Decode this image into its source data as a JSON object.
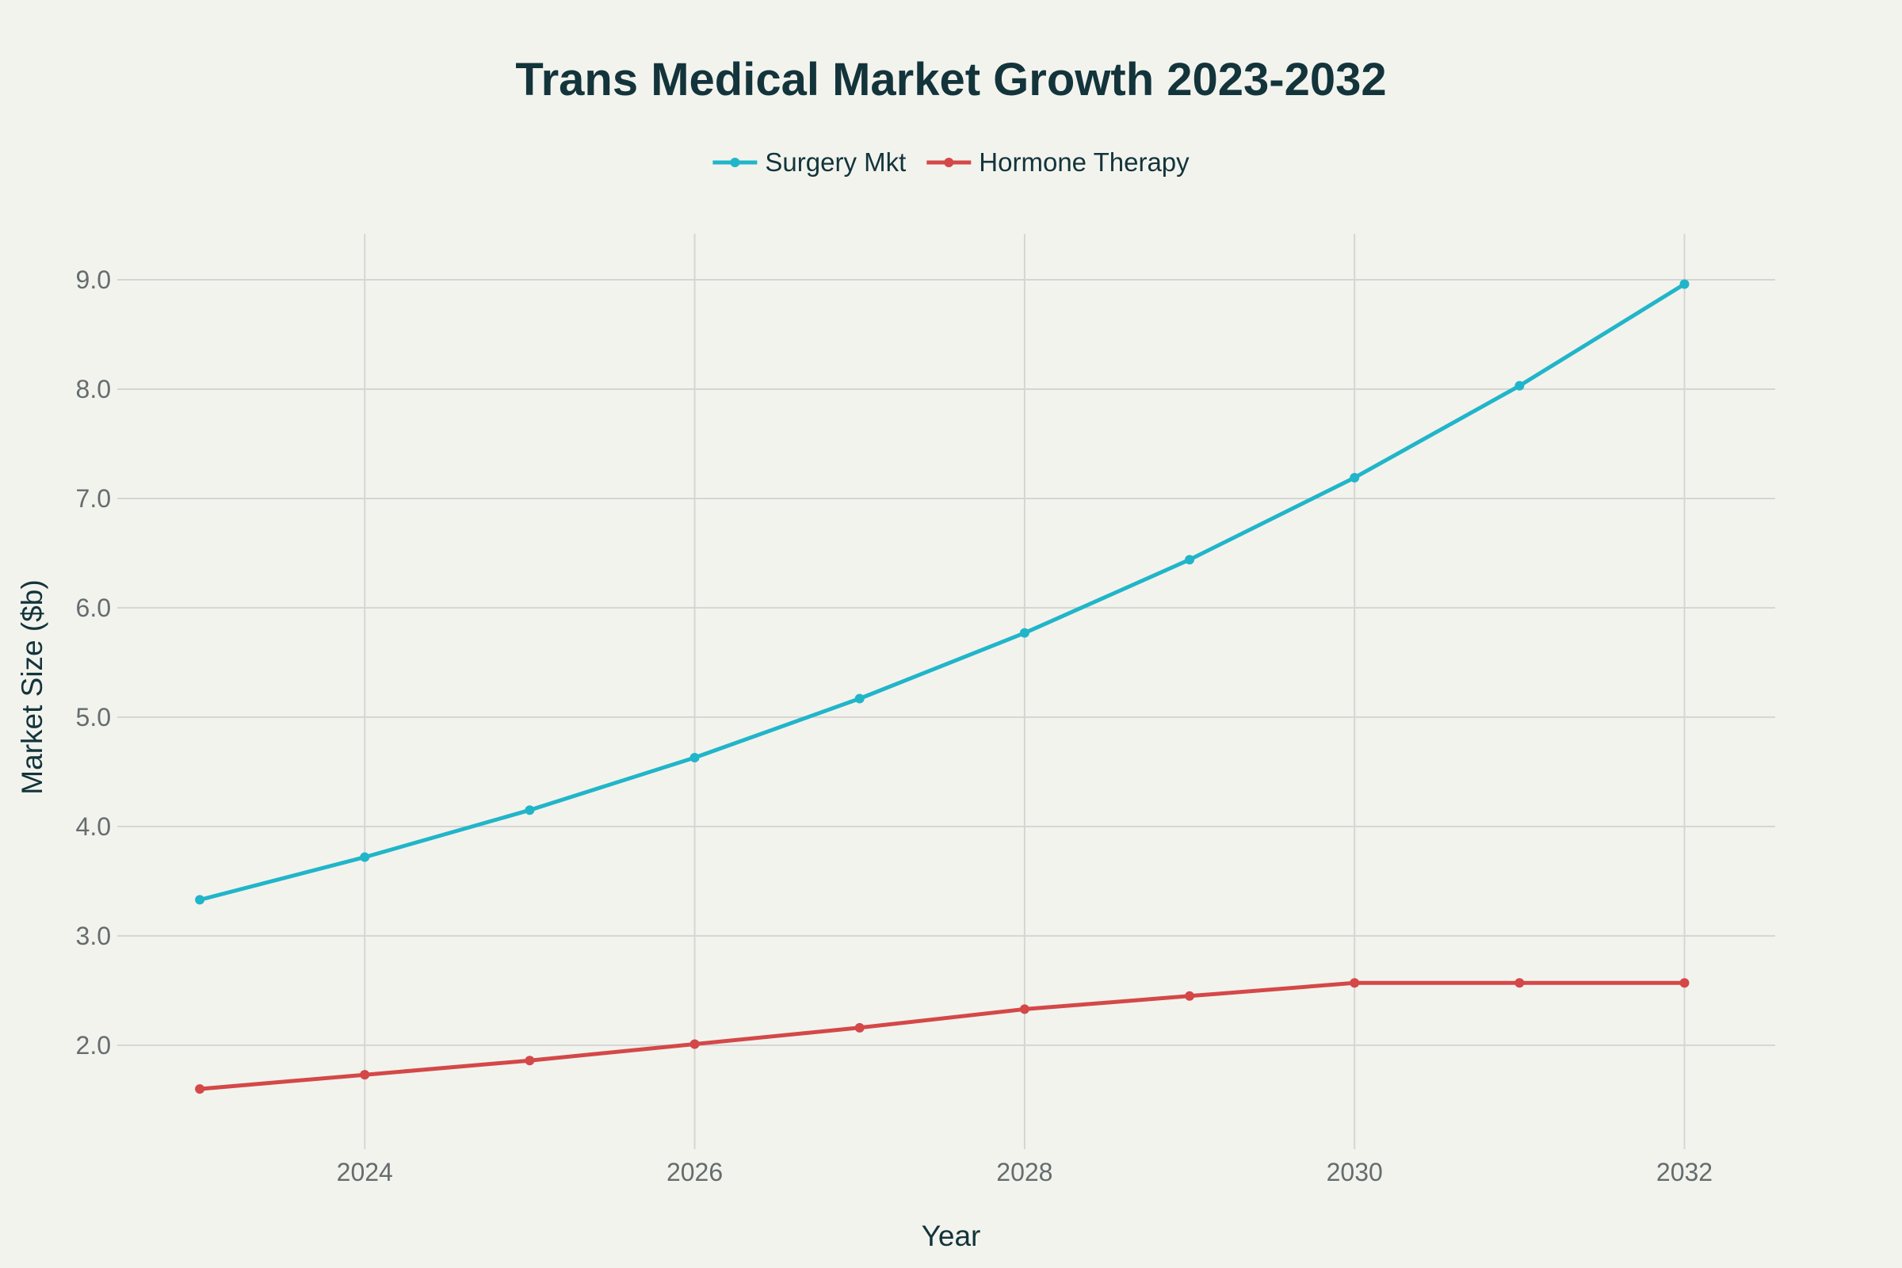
{
  "colors": {
    "background": "#f3f3ee",
    "grid": "#d5d5d3",
    "text": "#13343b",
    "tick_text": "#656c6e"
  },
  "chart_data": {
    "type": "line",
    "title": "Trans Medical Market Growth 2023-2032",
    "xlabel": "Year",
    "ylabel": "Market Size ($b)",
    "x": [
      2023,
      2024,
      2025,
      2026,
      2027,
      2028,
      2029,
      2030,
      2031,
      2032
    ],
    "xlim": [
      2022.5,
      2032.55
    ],
    "ylim": [
      1.05,
      9.42
    ],
    "xticks": [
      2024,
      2026,
      2028,
      2030,
      2032
    ],
    "yticks": [
      2.0,
      3.0,
      4.0,
      5.0,
      6.0,
      7.0,
      8.0,
      9.0
    ],
    "ytick_labels": [
      "2.0",
      "3.0",
      "4.0",
      "5.0",
      "6.0",
      "7.0",
      "8.0",
      "9.0"
    ],
    "grid": true,
    "legend_position": "top-center",
    "series": [
      {
        "name": "Surgery Mkt",
        "color": "#21b5c9",
        "values": [
          3.33,
          3.72,
          4.15,
          4.63,
          5.17,
          5.77,
          6.44,
          7.19,
          8.03,
          8.96
        ]
      },
      {
        "name": "Hormone Therapy",
        "color": "#d44848",
        "values": [
          1.6,
          1.73,
          1.86,
          2.01,
          2.16,
          2.33,
          2.45,
          2.57,
          2.57,
          2.57
        ]
      }
    ]
  }
}
